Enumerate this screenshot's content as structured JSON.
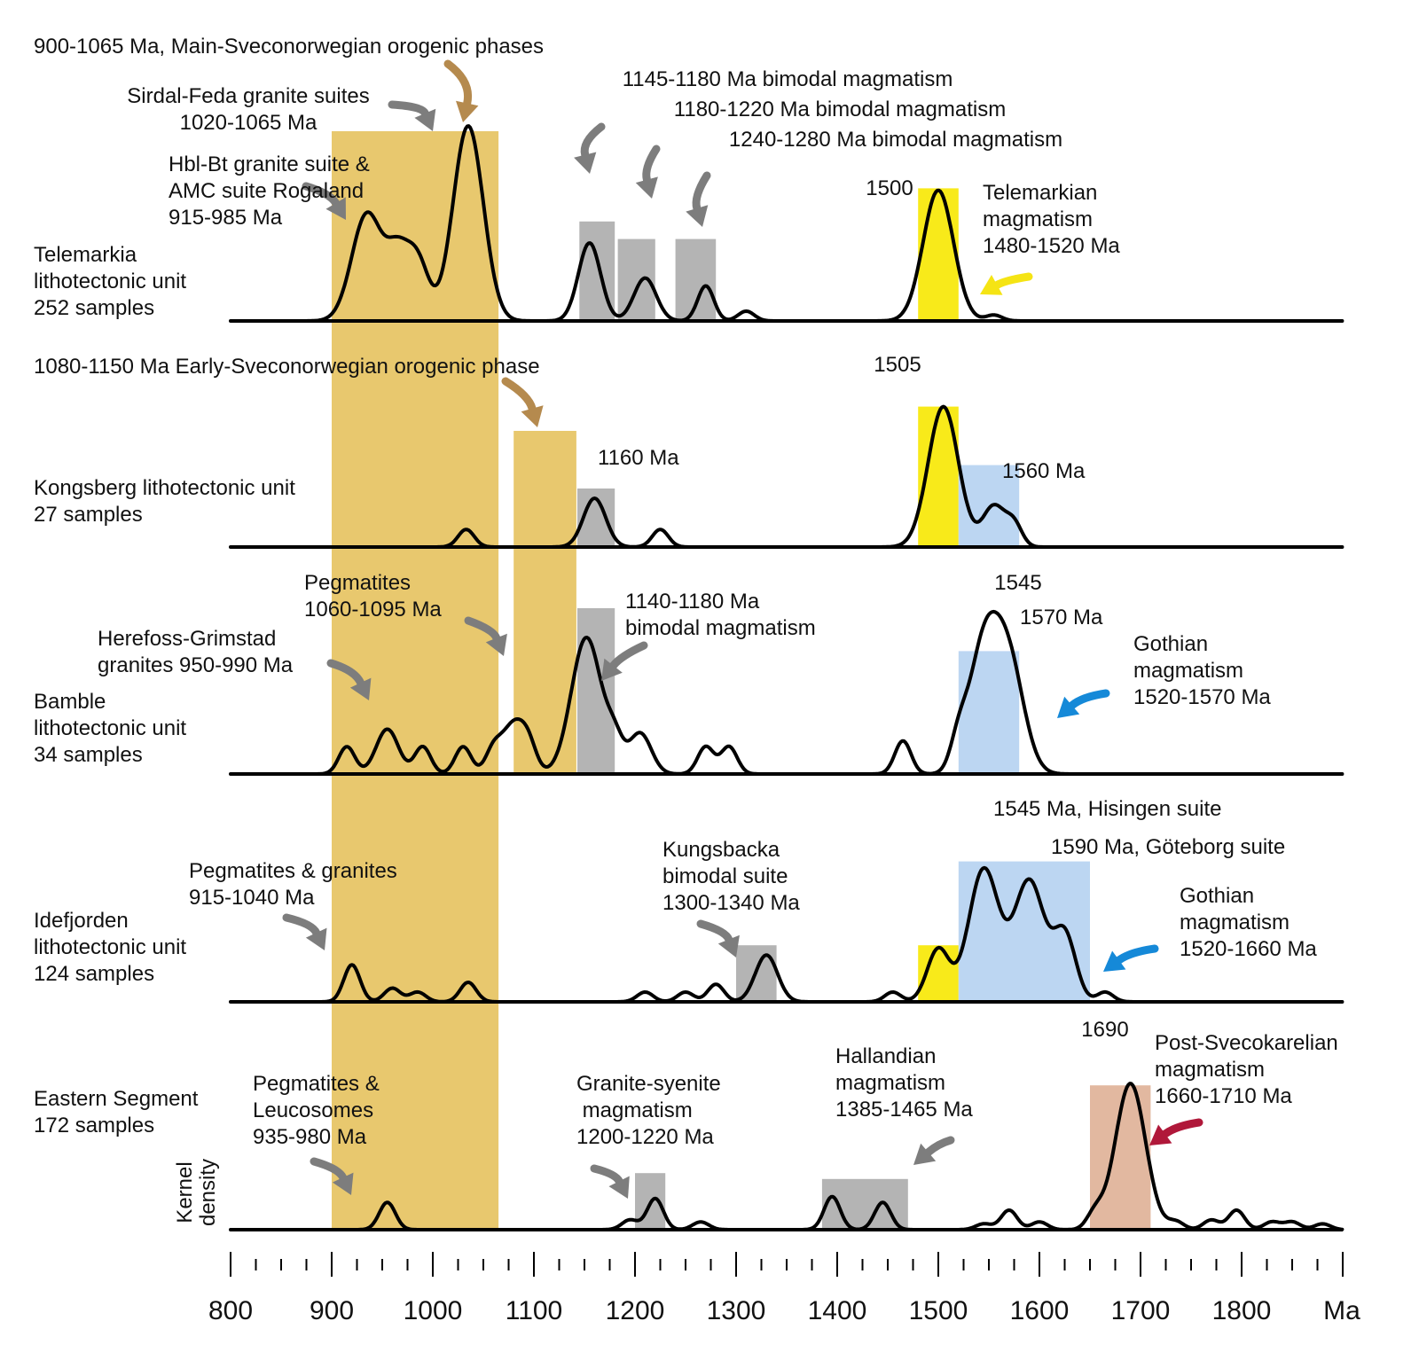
{
  "chart_data": {
    "type": "area",
    "x_unit": "Ma",
    "xlim": [
      800,
      1890
    ],
    "x_ticks": [
      800,
      900,
      1000,
      1100,
      1200,
      1300,
      1400,
      1500,
      1600,
      1700,
      1800
    ],
    "x_unit_label": "Ma",
    "ylabel": "Kernel density",
    "colors": {
      "orogenic": "#e8c86e",
      "bimodal": "#b4b4b4",
      "telemarkian": "#f8ea1a",
      "gothian": "#bcd6f2",
      "post_svecokarelian": "#e2b8a0",
      "arrow_grey": "#7d7d7d",
      "arrow_brown": "#b58a4e",
      "arrow_yellow": "#f5e414",
      "arrow_blue": "#1589d8",
      "arrow_red": "#b0183a"
    },
    "orogenic_bands": [
      {
        "from": 900,
        "to": 1065
      },
      {
        "from": 1080,
        "to": 1142
      }
    ],
    "panels": [
      {
        "unit": "Telemarkia\nlithotectonic unit\n252 samples",
        "peaks": [
          [
            935,
            0.55
          ],
          [
            965,
            0.3
          ],
          [
            985,
            0.3
          ],
          [
            1035,
            1.0
          ],
          [
            1155,
            0.4
          ],
          [
            1210,
            0.22
          ],
          [
            1270,
            0.18
          ],
          [
            1310,
            0.05
          ],
          [
            1500,
            0.67
          ],
          [
            1555,
            0.03
          ]
        ],
        "boxes": [
          {
            "from": 1145,
            "to": 1180,
            "top": 0.51,
            "color": "bimodal"
          },
          {
            "from": 1183,
            "to": 1220,
            "top": 0.42,
            "color": "bimodal"
          },
          {
            "from": 1240,
            "to": 1280,
            "top": 0.42,
            "color": "bimodal"
          },
          {
            "from": 1480,
            "to": 1520,
            "top": 0.68,
            "color": "telemarkian"
          }
        ],
        "labels": [
          {
            "text": "900-1065 Ma, Main-Sveconorwegian orogenic phases"
          },
          {
            "text": "Sirdal-Feda granite suites\n1020-1065 Ma"
          },
          {
            "text": "Hbl-Bt granite suite &\nAMC suite Rogaland\n915-985 Ma"
          },
          {
            "text": "1145-1180 Ma bimodal magmatism"
          },
          {
            "text": "1180-1220 Ma bimodal magmatism"
          },
          {
            "text": "1240-1280 Ma bimodal magmatism"
          },
          {
            "text": "1500"
          },
          {
            "text": "Telemarkian\nmagmatism\n1480-1520 Ma"
          }
        ],
        "arrows": [
          {
            "color": "arrow_brown"
          },
          {
            "color": "arrow_grey"
          },
          {
            "color": "arrow_grey"
          },
          {
            "color": "arrow_grey"
          },
          {
            "color": "arrow_grey"
          },
          {
            "color": "arrow_grey"
          },
          {
            "color": "arrow_yellow"
          }
        ]
      },
      {
        "unit": "Kongsberg lithotectonic unit\n27 samples",
        "peaks": [
          [
            1033,
            0.09
          ],
          [
            1160,
            0.25
          ],
          [
            1225,
            0.09
          ],
          [
            1505,
            0.72
          ],
          [
            1555,
            0.21
          ],
          [
            1575,
            0.11
          ]
        ],
        "boxes": [
          {
            "from": 1480,
            "to": 1520,
            "top": 0.72,
            "color": "telemarkian"
          },
          {
            "from": 1520,
            "to": 1580,
            "top": 0.42,
            "color": "gothian"
          },
          {
            "from": 1143,
            "to": 1180,
            "top": 0.3,
            "color": "bimodal"
          }
        ],
        "labels": [
          {
            "text": "1080-1150 Ma Early-Sveconorwegian orogenic phase"
          },
          {
            "text": "1505"
          },
          {
            "text": "1160 Ma"
          },
          {
            "text": "1560 Ma"
          }
        ],
        "arrows": [
          {
            "color": "arrow_brown"
          }
        ]
      },
      {
        "unit": "Bamble\nlithotectonic unit\n34 samples",
        "peaks": [
          [
            915,
            0.14
          ],
          [
            955,
            0.23
          ],
          [
            990,
            0.14
          ],
          [
            1030,
            0.14
          ],
          [
            1060,
            0.12
          ],
          [
            1080,
            0.25
          ],
          [
            1095,
            0.12
          ],
          [
            1152,
            0.7
          ],
          [
            1180,
            0.14
          ],
          [
            1205,
            0.21
          ],
          [
            1270,
            0.14
          ],
          [
            1293,
            0.14
          ],
          [
            1465,
            0.17
          ],
          [
            1520,
            0.14
          ],
          [
            1545,
            0.63
          ],
          [
            1570,
            0.54
          ]
        ],
        "boxes": [
          {
            "from": 1143,
            "to": 1180,
            "top": 0.85,
            "color": "bimodal"
          },
          {
            "from": 1520,
            "to": 1580,
            "top": 0.63,
            "color": "gothian"
          }
        ],
        "labels": [
          {
            "text": "Pegmatites\n1060-1095 Ma"
          },
          {
            "text": "Herefoss-Grimstad\ngranites 950-990 Ma"
          },
          {
            "text": "1140-1180 Ma\nbimodal magmatism"
          },
          {
            "text": "1545"
          },
          {
            "text": "1570 Ma"
          },
          {
            "text": "Gothian\nmagmatism\n1520-1570 Ma"
          }
        ],
        "arrows": [
          {
            "color": "arrow_grey"
          },
          {
            "color": "arrow_grey"
          },
          {
            "color": "arrow_grey"
          },
          {
            "color": "arrow_blue"
          }
        ]
      },
      {
        "unit": "Idefjorden\nlithotectonic unit\n124 samples",
        "peaks": [
          [
            920,
            0.19
          ],
          [
            960,
            0.07
          ],
          [
            985,
            0.05
          ],
          [
            1035,
            0.1
          ],
          [
            1210,
            0.05
          ],
          [
            1250,
            0.05
          ],
          [
            1280,
            0.09
          ],
          [
            1330,
            0.24
          ],
          [
            1455,
            0.05
          ],
          [
            1500,
            0.27
          ],
          [
            1545,
            0.68
          ],
          [
            1590,
            0.62
          ],
          [
            1625,
            0.34
          ],
          [
            1665,
            0.05
          ]
        ],
        "boxes": [
          {
            "from": 1300,
            "to": 1340,
            "top": 0.29,
            "color": "bimodal"
          },
          {
            "from": 1480,
            "to": 1520,
            "top": 0.29,
            "color": "telemarkian"
          },
          {
            "from": 1520,
            "to": 1650,
            "top": 0.72,
            "color": "gothian"
          }
        ],
        "labels": [
          {
            "text": "Pegmatites & granites\n915-1040 Ma"
          },
          {
            "text": "Kungsbacka\nbimodal suite\n1300-1340 Ma"
          },
          {
            "text": "1545 Ma, Hisingen suite"
          },
          {
            "text": "1590 Ma, Göteborg suite"
          },
          {
            "text": "Gothian\nmagmatism\n1520-1660 Ma"
          }
        ],
        "arrows": [
          {
            "color": "arrow_grey"
          },
          {
            "color": "arrow_grey"
          },
          {
            "color": "arrow_blue"
          }
        ]
      },
      {
        "unit": "Eastern Segment\n172 samples",
        "peaks": [
          [
            955,
            0.14
          ],
          [
            1195,
            0.05
          ],
          [
            1220,
            0.16
          ],
          [
            1265,
            0.04
          ],
          [
            1395,
            0.17
          ],
          [
            1445,
            0.14
          ],
          [
            1545,
            0.03
          ],
          [
            1570,
            0.1
          ],
          [
            1600,
            0.04
          ],
          [
            1655,
            0.08
          ],
          [
            1690,
            0.75
          ],
          [
            1735,
            0.04
          ],
          [
            1770,
            0.05
          ],
          [
            1795,
            0.1
          ],
          [
            1830,
            0.04
          ],
          [
            1850,
            0.04
          ],
          [
            1880,
            0.03
          ]
        ],
        "boxes": [
          {
            "from": 1200,
            "to": 1230,
            "top": 0.29,
            "color": "bimodal"
          },
          {
            "from": 1385,
            "to": 1470,
            "top": 0.26,
            "color": "bimodal"
          },
          {
            "from": 1650,
            "to": 1710,
            "top": 0.74,
            "color": "post_svecokarelian"
          }
        ],
        "labels": [
          {
            "text": "Pegmatites &\nLeucosomes\n935-980 Ma"
          },
          {
            "text": "Granite-syenite\n magmatism\n1200-1220 Ma"
          },
          {
            "text": "Hallandian\nmagmatism\n1385-1465 Ma"
          },
          {
            "text": "1690"
          },
          {
            "text": "Post-Svecokarelian\nmagmatism\n1660-1710 Ma"
          }
        ],
        "arrows": [
          {
            "color": "arrow_grey"
          },
          {
            "color": "arrow_grey"
          },
          {
            "color": "arrow_grey"
          },
          {
            "color": "arrow_red"
          }
        ]
      }
    ]
  }
}
